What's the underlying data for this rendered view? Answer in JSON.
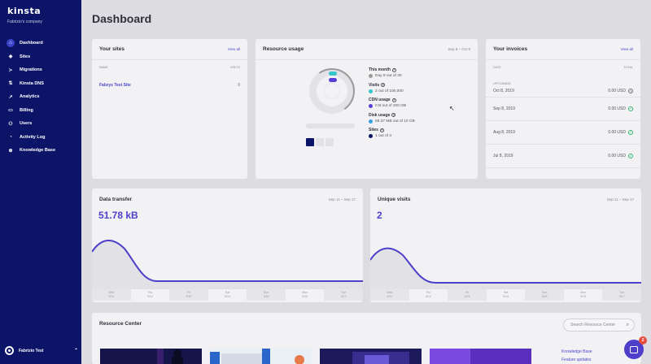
{
  "sidebar": {
    "logo": "kinsta",
    "company": "Fabrizio's company",
    "items": [
      {
        "label": "Dashboard",
        "icon": "dashboard-icon",
        "glyph": "⌂",
        "active": true
      },
      {
        "label": "Sites",
        "icon": "sites-icon",
        "glyph": "◈",
        "active": false
      },
      {
        "label": "Migrations",
        "icon": "migrations-icon",
        "glyph": "≻",
        "active": false
      },
      {
        "label": "Kinsta DNS",
        "icon": "dns-icon",
        "glyph": "⇅",
        "active": false
      },
      {
        "label": "Analytics",
        "icon": "analytics-icon",
        "glyph": "↗",
        "active": false
      },
      {
        "label": "Billing",
        "icon": "billing-icon",
        "glyph": "▭",
        "active": false
      },
      {
        "label": "Users",
        "icon": "users-icon",
        "glyph": "⚇",
        "active": false
      },
      {
        "label": "Activity Log",
        "icon": "activity-icon",
        "glyph": "◔",
        "active": false
      },
      {
        "label": "Knowledge Base",
        "icon": "knowledge-icon",
        "glyph": "⊛",
        "active": false
      }
    ],
    "user_name": "Fabrizio Test"
  },
  "page": {
    "title": "Dashboard"
  },
  "sites": {
    "title": "Your sites",
    "view_all": "View all",
    "col_name": "NAME",
    "col_visits": "VISITS",
    "rows": [
      {
        "name": "Fabzys Test Site",
        "visits": "0"
      }
    ]
  },
  "resource": {
    "title": "Resource usage",
    "range": "Sep 8 – Oct 8",
    "items": [
      {
        "label": "This month",
        "value": "Day 9 out of 30",
        "color": "#9a9a9a"
      },
      {
        "label": "Visits",
        "value": "2 out of 100,000",
        "color": "#33c7c9"
      },
      {
        "label": "CDN usage",
        "value": "0 B out of 200 GB",
        "color": "#5b3ed8"
      },
      {
        "label": "Disk usage",
        "value": "59.37 MB out of 10 GB",
        "color": "#3aa0e0"
      },
      {
        "label": "Sites",
        "value": "1 out of 3",
        "color": "#0b1467"
      }
    ]
  },
  "invoices": {
    "title": "Your invoices",
    "view_all": "View all",
    "col_date": "DATE",
    "col_total": "TOTAL",
    "upcoming_label": "UPCOMING",
    "rows": [
      {
        "date": "Oct 8, 2019",
        "amount": "0.00 USD",
        "status": "upcoming"
      },
      {
        "date": "Sep 8, 2019",
        "amount": "0.00 USD",
        "status": "paid"
      },
      {
        "date": "Aug 8, 2019",
        "amount": "0.00 USD",
        "status": "paid"
      },
      {
        "date": "Jul 8, 2019",
        "amount": "0.00 USD",
        "status": "paid"
      }
    ]
  },
  "transfer": {
    "title": "Data transfer",
    "range": "Sep 11 – Sep 17",
    "value": "51.78 kB",
    "days": [
      [
        "Wed",
        "9/11"
      ],
      [
        "Thu",
        "9/12"
      ],
      [
        "Fri",
        "9/13"
      ],
      [
        "Sat",
        "9/14"
      ],
      [
        "Sun",
        "9/15"
      ],
      [
        "Mon",
        "9/16"
      ],
      [
        "Tue",
        "9/17"
      ]
    ]
  },
  "visits": {
    "title": "Unique visits",
    "range": "Sep 11 – Sep 17",
    "value": "2",
    "days": [
      [
        "Wed",
        "9/11"
      ],
      [
        "Thu",
        "9/12"
      ],
      [
        "Fri",
        "9/13"
      ],
      [
        "Sat",
        "9/14"
      ],
      [
        "Sun",
        "9/15"
      ],
      [
        "Mon",
        "9/16"
      ],
      [
        "Tue",
        "9/17"
      ]
    ]
  },
  "resource_center": {
    "title": "Resource Center",
    "search_placeholder": "Search Resource Center",
    "links": [
      "Knowledge Base",
      "Feature updates"
    ]
  },
  "chat": {
    "badge": "2"
  },
  "colors": {
    "sidebar": "#0b1467",
    "accent": "#4d3fc9",
    "paid": "#2fb56a"
  }
}
